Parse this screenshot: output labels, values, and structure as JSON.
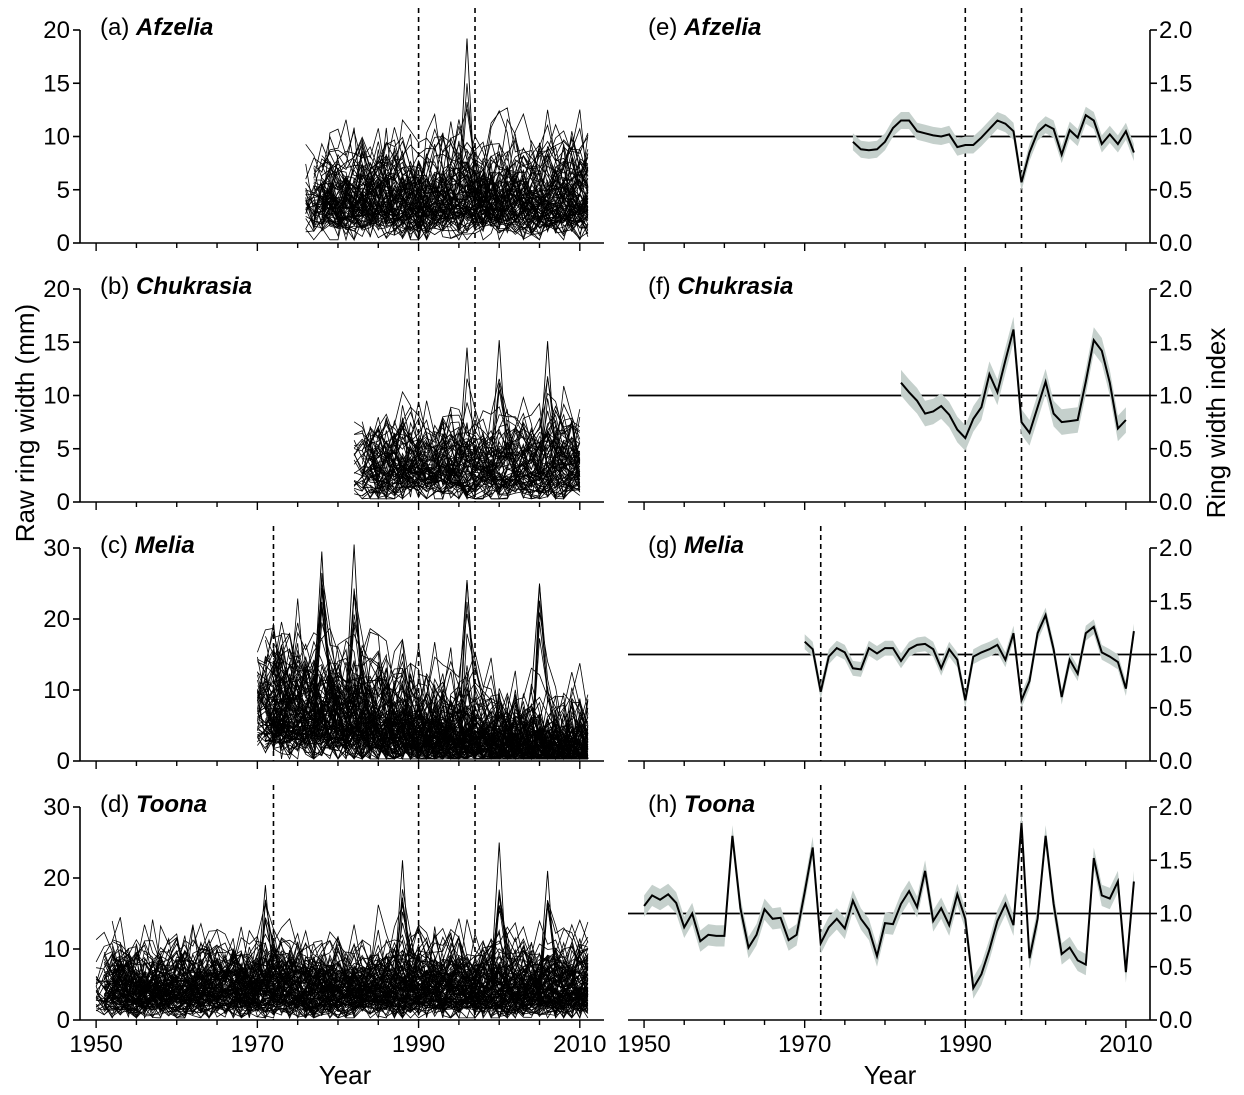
{
  "chart_data": {
    "type": "line",
    "left_ylabel": "Raw ring width (mm)",
    "right_ylabel": "Ring width index",
    "xlabel": "Year",
    "xlim": [
      1948,
      2013
    ],
    "xticks": [
      1950,
      1970,
      1990,
      2010
    ],
    "panels": [
      {
        "id": "a",
        "label": "(a) ",
        "species": "Afzelia",
        "kind": "raw",
        "row": 0,
        "col": 0,
        "ylim": [
          0,
          20
        ],
        "yticks": [
          0,
          5,
          10,
          15,
          20
        ],
        "start": 1976,
        "end": 2011,
        "n_series": 85,
        "level": 4.2,
        "spread": 2.6,
        "max": 14,
        "trend": 0,
        "peaks": [
          [
            1996,
            19.2
          ]
        ],
        "vlines": [
          1990,
          1997
        ]
      },
      {
        "id": "b",
        "label": "(b) ",
        "species": "Chukrasia",
        "kind": "raw",
        "row": 1,
        "col": 0,
        "ylim": [
          0,
          20
        ],
        "yticks": [
          0,
          5,
          10,
          15,
          20
        ],
        "start": 1982,
        "end": 2010,
        "n_series": 70,
        "level": 3.2,
        "spread": 2.2,
        "max": 11,
        "trend": 0,
        "peaks": [
          [
            1996,
            14.5
          ],
          [
            2006,
            15.1
          ],
          [
            2000,
            15.2
          ]
        ],
        "vlines": [
          1990,
          1997
        ]
      },
      {
        "id": "c",
        "label": "(c) ",
        "species": "Melia",
        "kind": "raw",
        "row": 2,
        "col": 0,
        "ylim": [
          0,
          30
        ],
        "yticks": [
          0,
          10,
          20,
          30
        ],
        "start": 1970,
        "end": 2011,
        "n_series": 110,
        "level": 7.5,
        "spread": 4.5,
        "max": 24,
        "trend": -0.09,
        "peaks": [
          [
            1982,
            30.5
          ],
          [
            1978,
            29.5
          ],
          [
            1996,
            25.5
          ],
          [
            2005,
            25.0
          ]
        ],
        "vlines": [
          1972,
          1990,
          1997
        ]
      },
      {
        "id": "d",
        "label": "(d) ",
        "species": "Toona",
        "kind": "raw",
        "row": 3,
        "col": 0,
        "ylim": [
          0,
          30
        ],
        "yticks": [
          0,
          10,
          20,
          30
        ],
        "start": 1950,
        "end": 2011,
        "n_series": 110,
        "level": 4.5,
        "spread": 3.0,
        "max": 16,
        "trend": 0,
        "peaks": [
          [
            2000,
            25
          ],
          [
            1971,
            19
          ],
          [
            1988,
            22.5
          ],
          [
            2006,
            21
          ]
        ],
        "vlines": [
          1972,
          1990,
          1997
        ]
      },
      {
        "id": "e",
        "label": "(e) ",
        "species": "Afzelia",
        "kind": "index",
        "row": 0,
        "col": 1,
        "ylim": [
          0,
          2
        ],
        "yticks": [
          0.0,
          0.5,
          1.0,
          1.5,
          2.0
        ],
        "years": [
          1976,
          1977,
          1978,
          1979,
          1980,
          1981,
          1982,
          1983,
          1984,
          1985,
          1986,
          1987,
          1988,
          1989,
          1990,
          1991,
          1992,
          1993,
          1994,
          1995,
          1996,
          1997,
          1998,
          1999,
          2000,
          2001,
          2002,
          2003,
          2004,
          2005,
          2006,
          2007,
          2008,
          2009,
          2010,
          2011
        ],
        "values": [
          0.95,
          0.88,
          0.87,
          0.88,
          0.95,
          1.08,
          1.15,
          1.15,
          1.05,
          1.03,
          1.01,
          1.0,
          1.02,
          0.9,
          0.92,
          0.92,
          0.99,
          1.07,
          1.15,
          1.12,
          1.05,
          0.57,
          0.85,
          1.04,
          1.11,
          1.07,
          0.83,
          1.06,
          0.99,
          1.2,
          1.15,
          0.93,
          1.02,
          0.93,
          1.05,
          0.85
        ],
        "band": 0.08,
        "refline": 1.0,
        "vlines": [
          1990,
          1997
        ]
      },
      {
        "id": "f",
        "label": "(f) ",
        "species": "Chukrasia",
        "kind": "index",
        "row": 1,
        "col": 1,
        "ylim": [
          0,
          2
        ],
        "yticks": [
          0.0,
          0.5,
          1.0,
          1.5,
          2.0
        ],
        "years": [
          1982,
          1983,
          1984,
          1985,
          1986,
          1987,
          1988,
          1989,
          1990,
          1991,
          1992,
          1993,
          1994,
          1995,
          1996,
          1997,
          1998,
          1999,
          2000,
          2001,
          2002,
          2003,
          2004,
          2005,
          2006,
          2007,
          2008,
          2009,
          2010
        ],
        "values": [
          1.12,
          1.03,
          0.95,
          0.83,
          0.85,
          0.9,
          0.82,
          0.68,
          0.6,
          0.78,
          0.89,
          1.2,
          1.03,
          1.33,
          1.62,
          0.75,
          0.65,
          0.89,
          1.13,
          0.83,
          0.75,
          0.76,
          0.77,
          1.13,
          1.52,
          1.42,
          1.12,
          0.69,
          0.77
        ],
        "band": 0.12,
        "refline": 1.0,
        "vlines": [
          1990,
          1997
        ]
      },
      {
        "id": "g",
        "label": "(g) ",
        "species": "Melia",
        "kind": "index",
        "row": 2,
        "col": 1,
        "ylim": [
          0,
          2
        ],
        "yticks": [
          0.0,
          0.5,
          1.0,
          1.5,
          2.0
        ],
        "years": [
          1970,
          1971,
          1972,
          1973,
          1974,
          1975,
          1976,
          1977,
          1978,
          1979,
          1980,
          1981,
          1982,
          1983,
          1984,
          1985,
          1986,
          1987,
          1988,
          1989,
          1990,
          1991,
          1992,
          1993,
          1994,
          1995,
          1996,
          1997,
          1998,
          1999,
          2000,
          2001,
          2002,
          2003,
          2004,
          2005,
          2006,
          2007,
          2008,
          2009,
          2010,
          2011
        ],
        "values": [
          1.12,
          1.05,
          0.65,
          0.98,
          1.06,
          1.02,
          0.87,
          0.86,
          1.06,
          1.01,
          1.06,
          1.06,
          0.94,
          1.05,
          1.09,
          1.1,
          1.05,
          0.87,
          1.05,
          0.95,
          0.57,
          0.98,
          1.02,
          1.05,
          1.09,
          0.95,
          1.2,
          0.57,
          0.75,
          1.2,
          1.37,
          1.05,
          0.6,
          0.95,
          0.82,
          1.2,
          1.26,
          1.02,
          0.98,
          0.93,
          0.68,
          1.22
        ],
        "band": 0.07,
        "refline": 1.0,
        "vlines": [
          1972,
          1990,
          1997
        ]
      },
      {
        "id": "h",
        "label": "(h) ",
        "species": "Toona",
        "kind": "index",
        "row": 3,
        "col": 1,
        "ylim": [
          0,
          2
        ],
        "yticks": [
          0.0,
          0.5,
          1.0,
          1.5,
          2.0
        ],
        "years": [
          1950,
          1951,
          1952,
          1953,
          1954,
          1955,
          1956,
          1957,
          1958,
          1959,
          1960,
          1961,
          1962,
          1963,
          1964,
          1965,
          1966,
          1967,
          1968,
          1969,
          1970,
          1971,
          1972,
          1973,
          1974,
          1975,
          1976,
          1977,
          1978,
          1979,
          1980,
          1981,
          1982,
          1983,
          1984,
          1985,
          1986,
          1987,
          1988,
          1989,
          1990,
          1991,
          1992,
          1993,
          1994,
          1995,
          1996,
          1997,
          1998,
          1999,
          2000,
          2001,
          2002,
          2003,
          2004,
          2005,
          2006,
          2007,
          2008,
          2009,
          2010,
          2011
        ],
        "values": [
          1.07,
          1.17,
          1.13,
          1.18,
          1.1,
          0.87,
          1.0,
          0.74,
          0.8,
          0.79,
          0.79,
          1.73,
          1.05,
          0.68,
          0.8,
          1.04,
          0.95,
          0.96,
          0.75,
          0.8,
          1.2,
          1.62,
          0.72,
          0.87,
          0.95,
          0.86,
          1.12,
          0.95,
          0.85,
          0.6,
          0.91,
          0.9,
          1.09,
          1.21,
          1.06,
          1.4,
          0.93,
          1.05,
          0.89,
          1.18,
          0.95,
          0.3,
          0.43,
          0.66,
          0.93,
          1.09,
          0.89,
          1.85,
          0.58,
          0.95,
          1.73,
          1.09,
          0.62,
          0.68,
          0.56,
          0.52,
          1.52,
          1.17,
          1.14,
          1.3,
          0.45,
          1.3
        ],
        "band": 0.1,
        "refline": 1.0,
        "vlines": [
          1972,
          1990,
          1997
        ]
      }
    ]
  }
}
